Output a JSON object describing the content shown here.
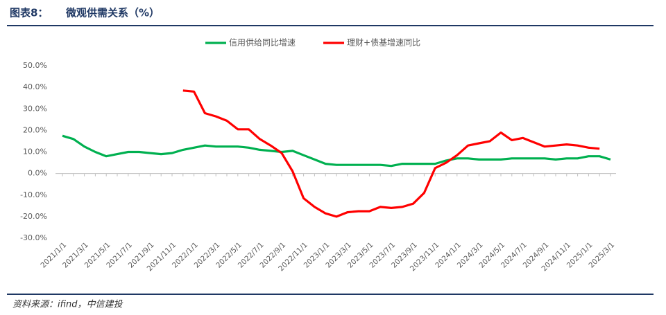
{
  "chart_data": {
    "type": "line",
    "figure_label": "图表8：",
    "title": "微观供需关系（%）",
    "source": "资料来源：ifind，中信建投",
    "categories": [
      "2021/1/1",
      null,
      "2021/3/1",
      null,
      "2021/5/1",
      null,
      "2021/7/1",
      null,
      "2021/9/1",
      null,
      "2021/11/1",
      null,
      "2022/1/1",
      null,
      "2022/3/1",
      null,
      "2022/5/1",
      null,
      "2022/7/1",
      null,
      "2022/9/1",
      null,
      "2022/11/1",
      null,
      "2023/1/1",
      null,
      "2023/3/1",
      null,
      "2023/5/1",
      null,
      "2023/7/1",
      null,
      "2023/9/1",
      null,
      "2023/11/1",
      null,
      "2024/1/1",
      null,
      "2024/3/1",
      null,
      "2024/5/1",
      null,
      "2024/7/1",
      null,
      "2024/9/1",
      null,
      "2024/11/1",
      null,
      "2025/1/1",
      null,
      "2025/3/1"
    ],
    "series": [
      {
        "name": "信用供给同比增速",
        "color": "#00b050",
        "values": [
          17.5,
          16,
          12.5,
          10,
          8,
          9,
          10,
          10,
          9.5,
          9,
          9.5,
          11,
          12,
          13,
          12.5,
          12.5,
          12.5,
          12,
          11,
          10.5,
          10,
          10.5,
          8.5,
          6.5,
          4.5,
          4,
          4,
          4,
          4,
          4,
          3.5,
          4.5,
          4.5,
          4.5,
          4.5,
          6,
          7,
          7,
          6.5,
          6.5,
          6.5,
          7,
          7,
          7,
          7,
          6.5,
          7,
          7,
          8,
          8,
          6.5
        ]
      },
      {
        "name": "理财+债基增速同比",
        "color": "#ff0000",
        "values": [
          null,
          null,
          null,
          null,
          null,
          null,
          null,
          null,
          null,
          null,
          null,
          38.5,
          38,
          28,
          26.5,
          24.5,
          20.5,
          20.5,
          16,
          13,
          9.5,
          1,
          -11.5,
          -15.5,
          -18.5,
          -20,
          -18,
          -17.5,
          -17.5,
          -15.5,
          -16,
          -15.5,
          -14,
          -9,
          2.5,
          5,
          8.5,
          13,
          14,
          15,
          19,
          15.5,
          16.5,
          14.5,
          12.5,
          13,
          13.5,
          13,
          12,
          11.5,
          null
        ]
      }
    ],
    "ylim": [
      -30,
      50
    ],
    "yticks": [
      {
        "value": -30,
        "label": "-30.0%"
      },
      {
        "value": -20,
        "label": "-20.0%"
      },
      {
        "value": -10,
        "label": "-10.0%"
      },
      {
        "value": 0,
        "label": "0.0%"
      },
      {
        "value": 10,
        "label": "10.0%"
      },
      {
        "value": 20,
        "label": "20.0%"
      },
      {
        "value": 30,
        "label": "30.0%"
      },
      {
        "value": 40,
        "label": "40.0%"
      },
      {
        "value": 50,
        "label": "50.0%"
      }
    ],
    "grid": false,
    "legend": "top"
  }
}
